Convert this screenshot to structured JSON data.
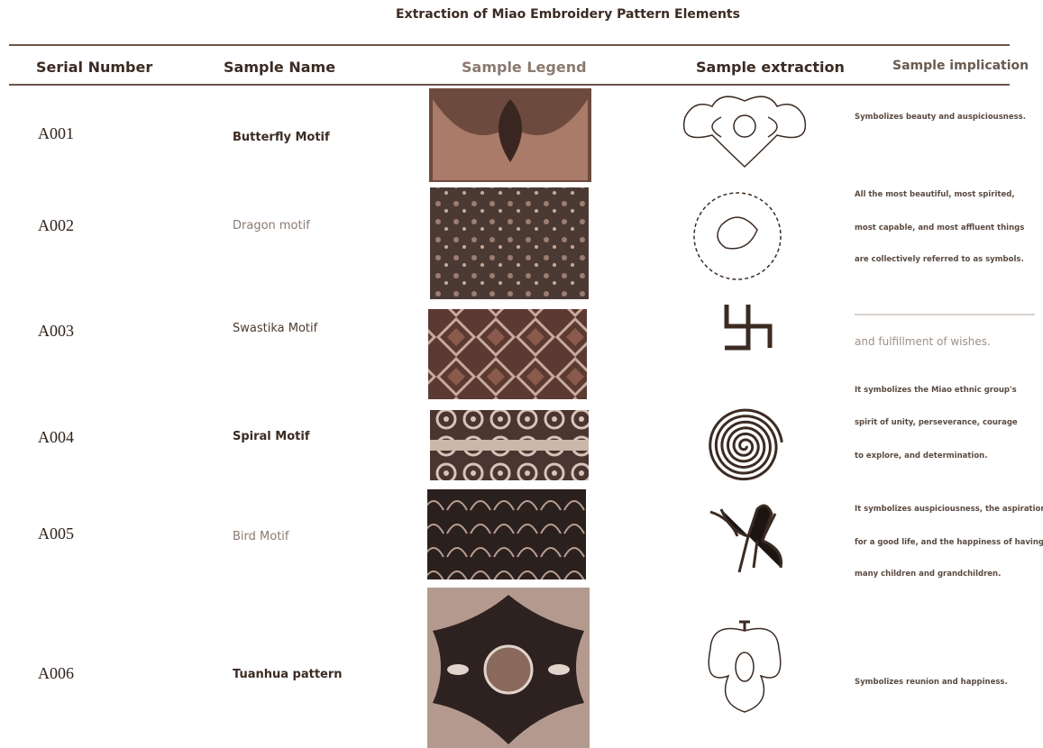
{
  "title": "Extraction of Miao Embroidery Pattern Elements",
  "headers": [
    "Serial Number",
    "Sample Name",
    "Sample Legend",
    "Sample extraction",
    "Sample implication"
  ],
  "rows": [
    {
      "serial": "A001",
      "name": "Butterfly Motif",
      "implication": [
        "Symbolizes beauty and auspiciousness."
      ]
    },
    {
      "serial": "A002",
      "name": "Dragon motif",
      "implication": [
        "All the most beautiful, most spirited,",
        "most capable, and most affluent things",
        "are collectively referred to as symbols."
      ]
    },
    {
      "serial": "A003",
      "name": "Swastika Motif",
      "implication": [
        "and fulfillment of wishes."
      ]
    },
    {
      "serial": "A004",
      "name": "Spiral Motif",
      "implication": [
        "It symbolizes the Miao ethnic group's",
        "spirit of unity, perseverance, courage",
        "to explore, and determination."
      ]
    },
    {
      "serial": "A005",
      "name": "Bird Motif",
      "implication": [
        "It symbolizes auspiciousness, the aspiration",
        "for a good life, and the happiness of having",
        "many children and grandchildren."
      ]
    },
    {
      "serial": "A006",
      "name": "Tuanhua pattern",
      "implication": [
        "Symbolizes reunion and happiness."
      ]
    }
  ]
}
